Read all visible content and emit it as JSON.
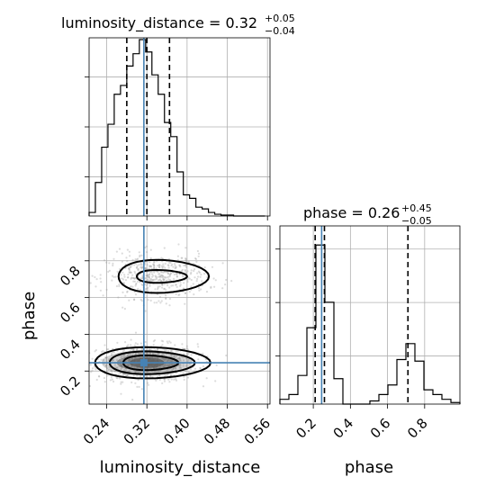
{
  "chart_data": {
    "type": "corner",
    "parameters": [
      "luminosity_distance",
      "phase"
    ],
    "colors": {
      "truth": "#4682b4",
      "samples": "#9a9a9a",
      "contour": "#000000",
      "grid": "#b0b0b0"
    },
    "grid": true,
    "panels": {
      "luminosity_distance_hist": {
        "title_main": "luminosity_distance = 0.32",
        "title_plus": "+0.05",
        "title_minus": "−0.04",
        "xlim": [
          0.205,
          0.565
        ],
        "ylim": [
          0,
          1.0
        ],
        "bin_edges": [
          0.205,
          0.2175,
          0.23,
          0.2425,
          0.255,
          0.2675,
          0.28,
          0.2925,
          0.305,
          0.3175,
          0.33,
          0.3425,
          0.355,
          0.3675,
          0.38,
          0.3925,
          0.405,
          0.4175,
          0.43,
          0.4425,
          0.455,
          0.4675,
          0.48,
          0.4925,
          0.505,
          0.5175,
          0.53,
          0.5425,
          0.555
        ],
        "counts": [
          0.02,
          0.19,
          0.39,
          0.52,
          0.69,
          0.74,
          0.85,
          0.92,
          1.0,
          0.93,
          0.8,
          0.69,
          0.53,
          0.45,
          0.25,
          0.12,
          0.1,
          0.05,
          0.04,
          0.02,
          0.01,
          0.005,
          0.005,
          0,
          0,
          0,
          0,
          0
        ],
        "quantiles": [
          0.28,
          0.32,
          0.365
        ],
        "truth": 0.314,
        "xticks": [
          0.24,
          0.32,
          0.4,
          0.48,
          0.56
        ]
      },
      "phase_hist": {
        "title_main": "phase = 0.26",
        "title_plus": "+0.45",
        "title_minus": "−0.05",
        "xlim": [
          0.02,
          0.99
        ],
        "ylim": [
          0,
          1.12
        ],
        "bin_edges": [
          0.02,
          0.0685,
          0.117,
          0.1655,
          0.214,
          0.2625,
          0.311,
          0.3595,
          0.408,
          0.4565,
          0.505,
          0.5535,
          0.602,
          0.6505,
          0.699,
          0.7475,
          0.796,
          0.8445,
          0.893,
          0.9415,
          0.99
        ],
        "counts": [
          0.03,
          0.06,
          0.18,
          0.48,
          1.0,
          0.64,
          0.16,
          0.0,
          0.0,
          0.0,
          0.02,
          0.06,
          0.12,
          0.28,
          0.38,
          0.27,
          0.09,
          0.06,
          0.03,
          0.01
        ],
        "quantiles": [
          0.21,
          0.26,
          0.71
        ],
        "truth": 0.245,
        "xticks": [
          0.2,
          0.4,
          0.6,
          0.8
        ]
      },
      "joint": {
        "x_param": "luminosity_distance",
        "y_param": "phase",
        "xlim": [
          0.205,
          0.565
        ],
        "ylim": [
          0.02,
          0.99
        ],
        "truth": [
          0.314,
          0.245
        ],
        "yticks": [
          0.2,
          0.4,
          0.6,
          0.8
        ],
        "modes": [
          {
            "center": [
              0.32,
              0.245
            ],
            "spread": [
              0.05,
              0.05
            ],
            "weight": 0.62
          },
          {
            "center": [
              0.34,
              0.715
            ],
            "spread": [
              0.05,
              0.06
            ],
            "weight": 0.38
          }
        ]
      }
    },
    "tick_labels": {
      "x_lum": [
        "0.24",
        "0.32",
        "0.40",
        "0.48",
        "0.56"
      ],
      "x_phase": [
        "0.2",
        "0.4",
        "0.6",
        "0.8"
      ],
      "y_phase": [
        "0.2",
        "0.4",
        "0.6",
        "0.8"
      ]
    },
    "axis_labels": {
      "xlabel_left": "luminosity_distance",
      "xlabel_right": "phase",
      "ylabel_joint": "phase"
    }
  }
}
